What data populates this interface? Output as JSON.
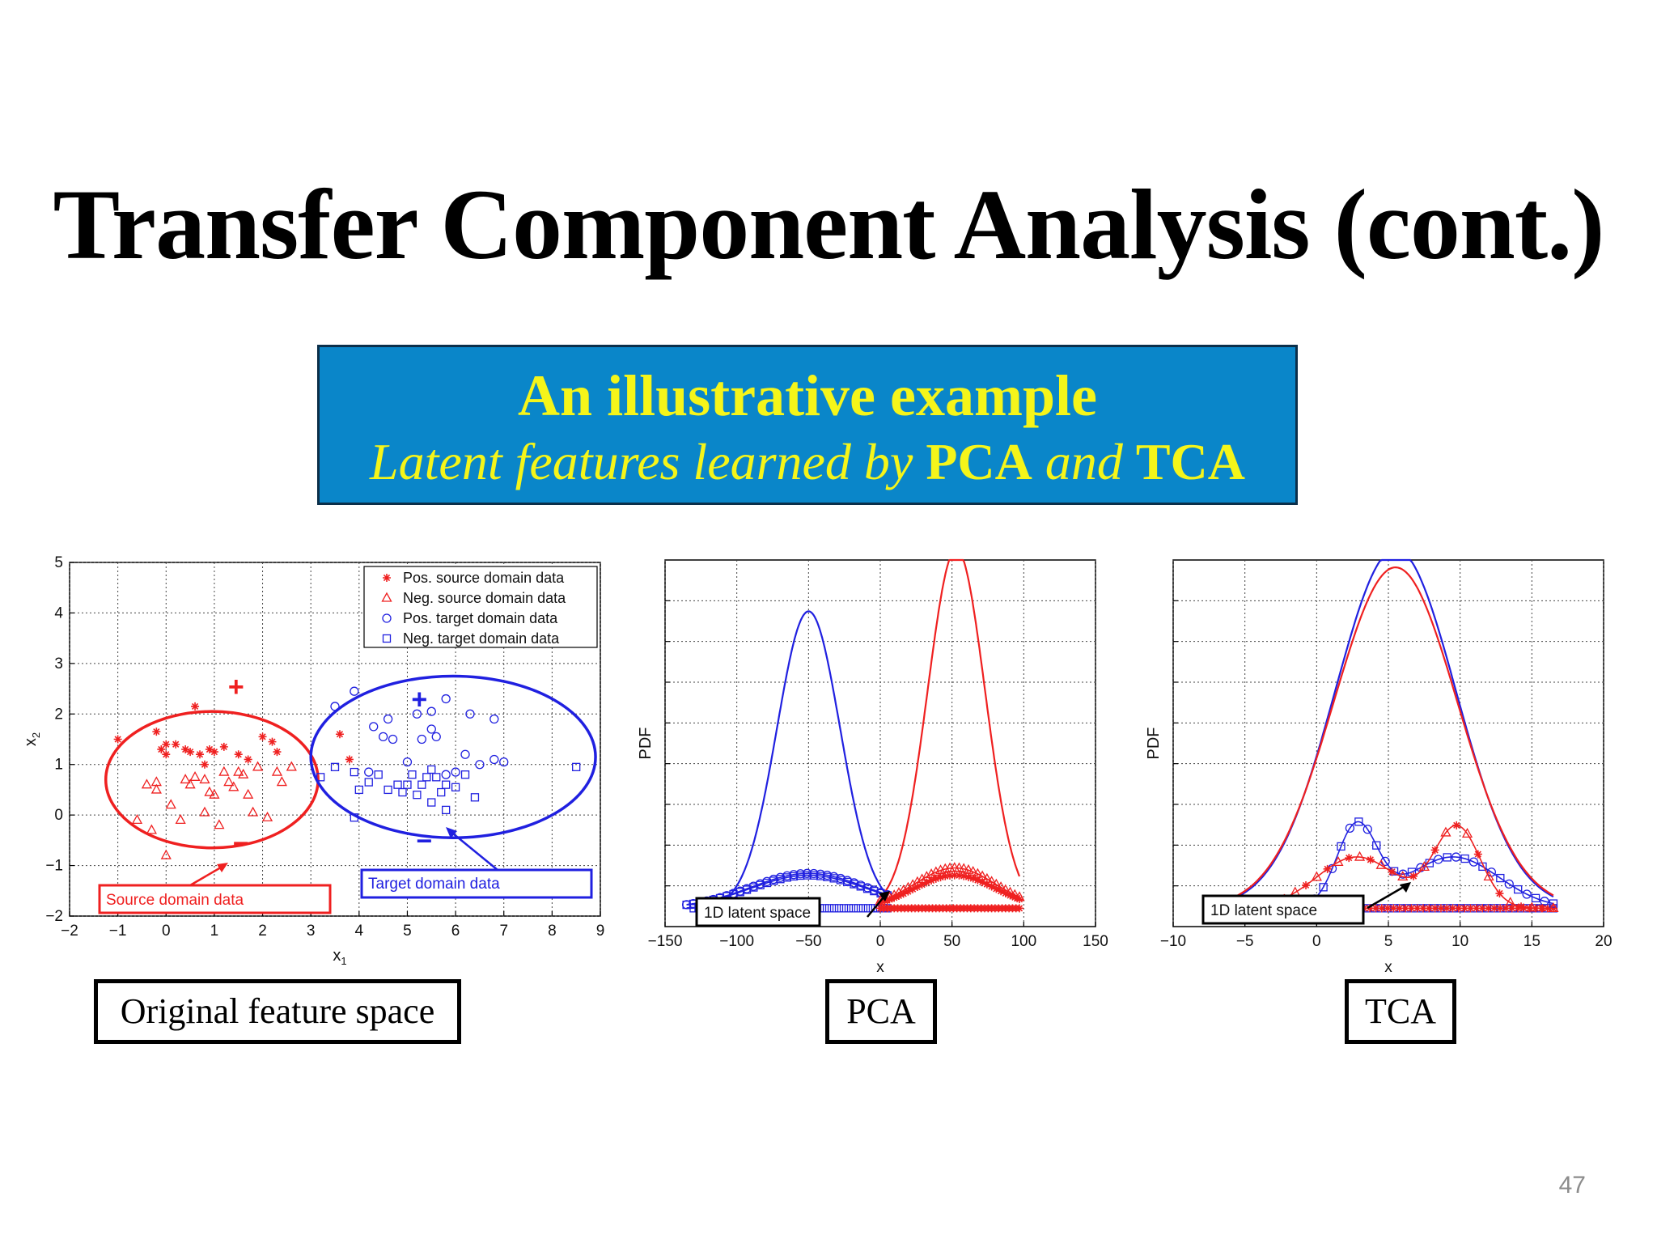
{
  "slide": {
    "title": "Transfer Component Analysis (cont.)",
    "page_number": "47",
    "banner": {
      "heading": "An illustrative example",
      "subtitle": {
        "part1": "Latent features learned by ",
        "pca": "PCA",
        "part2": " and ",
        "tca": "TCA"
      },
      "background_color": "#0a86c9",
      "text_color": "#f5f51a"
    },
    "captions": {
      "original": "Original feature space",
      "pca": "PCA",
      "tca": "TCA"
    }
  },
  "colors": {
    "source": "#ef2020",
    "target": "#2020e0"
  },
  "chart_data": [
    {
      "type": "scatter",
      "title": "",
      "xlabel": "x",
      "xlabel_sub": "1",
      "ylabel": "x",
      "ylabel_sub": "2",
      "xlim": [
        -2,
        9
      ],
      "ylim": [
        -2,
        5
      ],
      "xticks": [
        -2,
        -1,
        0,
        1,
        2,
        3,
        4,
        5,
        6,
        7,
        8,
        9
      ],
      "yticks": [
        -2,
        -1,
        0,
        1,
        2,
        3,
        4,
        5
      ],
      "xtick_labels": [
        "−2",
        "−1",
        "0",
        "1",
        "2",
        "3",
        "4",
        "5",
        "6",
        "7",
        "8",
        "9"
      ],
      "ytick_labels": [
        "−2",
        "−1",
        "0",
        "1",
        "2",
        "3",
        "4",
        "5"
      ],
      "grid": true,
      "legend_position": "top-right",
      "series": [
        {
          "name": "Pos. source domain data",
          "marker": "star",
          "color": "#ef2020",
          "points": [
            [
              -1.0,
              1.5
            ],
            [
              -0.2,
              1.65
            ],
            [
              -0.1,
              1.3
            ],
            [
              0.0,
              1.2
            ],
            [
              0.0,
              1.4
            ],
            [
              0.2,
              1.4
            ],
            [
              0.4,
              1.3
            ],
            [
              0.5,
              1.25
            ],
            [
              0.6,
              2.15
            ],
            [
              0.7,
              1.2
            ],
            [
              0.8,
              1.0
            ],
            [
              0.9,
              1.3
            ],
            [
              1.0,
              1.25
            ],
            [
              1.2,
              1.35
            ],
            [
              1.5,
              1.2
            ],
            [
              1.7,
              1.1
            ],
            [
              2.0,
              1.55
            ],
            [
              2.2,
              1.45
            ],
            [
              2.3,
              1.25
            ],
            [
              3.6,
              1.6
            ],
            [
              3.8,
              1.1
            ]
          ]
        },
        {
          "name": "Neg. source domain data",
          "marker": "triangle",
          "color": "#ef2020",
          "points": [
            [
              -0.4,
              0.6
            ],
            [
              -0.2,
              0.5
            ],
            [
              -0.2,
              0.65
            ],
            [
              -0.6,
              -0.1
            ],
            [
              -0.3,
              -0.3
            ],
            [
              0.0,
              -0.8
            ],
            [
              0.1,
              0.2
            ],
            [
              0.3,
              -0.1
            ],
            [
              0.4,
              0.7
            ],
            [
              0.5,
              0.6
            ],
            [
              0.6,
              0.75
            ],
            [
              0.8,
              0.7
            ],
            [
              0.9,
              0.45
            ],
            [
              1.0,
              0.4
            ],
            [
              1.1,
              -0.2
            ],
            [
              1.2,
              0.85
            ],
            [
              1.3,
              0.65
            ],
            [
              1.4,
              0.55
            ],
            [
              1.5,
              0.85
            ],
            [
              1.6,
              0.8
            ],
            [
              1.7,
              0.4
            ],
            [
              1.8,
              0.05
            ],
            [
              1.9,
              0.95
            ],
            [
              2.1,
              -0.05
            ],
            [
              2.3,
              0.85
            ],
            [
              2.4,
              0.65
            ],
            [
              2.6,
              0.95
            ],
            [
              0.8,
              0.05
            ]
          ]
        },
        {
          "name": "Pos. target domain data",
          "marker": "circle",
          "color": "#2020e0",
          "points": [
            [
              3.5,
              2.15
            ],
            [
              3.9,
              2.45
            ],
            [
              4.3,
              1.75
            ],
            [
              4.5,
              1.55
            ],
            [
              4.6,
              1.9
            ],
            [
              4.7,
              1.5
            ],
            [
              5.0,
              1.05
            ],
            [
              5.2,
              2.0
            ],
            [
              5.3,
              1.5
            ],
            [
              5.5,
              2.05
            ],
            [
              5.5,
              1.7
            ],
            [
              5.6,
              1.55
            ],
            [
              5.8,
              2.3
            ],
            [
              6.0,
              0.85
            ],
            [
              6.2,
              1.2
            ],
            [
              6.3,
              2.0
            ],
            [
              6.5,
              1.0
            ],
            [
              6.8,
              1.9
            ],
            [
              6.8,
              1.1
            ],
            [
              7.0,
              1.05
            ],
            [
              4.2,
              0.85
            ],
            [
              5.8,
              0.8
            ]
          ]
        },
        {
          "name": "Neg. target domain data",
          "marker": "square",
          "color": "#2020e0",
          "points": [
            [
              3.2,
              0.75
            ],
            [
              3.5,
              0.95
            ],
            [
              3.9,
              0.85
            ],
            [
              4.0,
              0.5
            ],
            [
              4.2,
              0.65
            ],
            [
              4.4,
              0.8
            ],
            [
              4.6,
              0.5
            ],
            [
              4.8,
              0.6
            ],
            [
              4.9,
              0.45
            ],
            [
              5.0,
              0.6
            ],
            [
              5.1,
              0.8
            ],
            [
              5.2,
              0.4
            ],
            [
              5.3,
              0.6
            ],
            [
              5.4,
              0.75
            ],
            [
              5.5,
              0.9
            ],
            [
              5.6,
              0.75
            ],
            [
              5.7,
              0.45
            ],
            [
              5.8,
              0.6
            ],
            [
              6.0,
              0.55
            ],
            [
              6.2,
              0.8
            ],
            [
              5.8,
              0.1
            ],
            [
              5.5,
              0.25
            ],
            [
              6.4,
              0.35
            ],
            [
              3.9,
              -0.05
            ],
            [
              8.5,
              0.95
            ]
          ]
        }
      ],
      "annotations": [
        {
          "text": "+",
          "color": "#ef2020",
          "x": 1.45,
          "y": 2.55
        },
        {
          "text": "−",
          "color": "#ef2020",
          "x": 1.55,
          "y": -0.55
        },
        {
          "text": "+",
          "color": "#2020e0",
          "x": 5.25,
          "y": 2.3
        },
        {
          "text": "−",
          "color": "#2020e0",
          "x": 5.35,
          "y": -0.5
        }
      ],
      "ellipses": [
        {
          "color": "#ef2020",
          "cx": 0.95,
          "cy": 0.7,
          "rx": 2.2,
          "ry": 1.35
        },
        {
          "color": "#2020e0",
          "cx": 5.95,
          "cy": 1.15,
          "rx": 2.95,
          "ry": 1.6
        }
      ],
      "callouts": [
        {
          "text": "Source domain data",
          "color": "#ef2020"
        },
        {
          "text": "Target domain data",
          "color": "#2020e0"
        }
      ]
    },
    {
      "type": "line",
      "title": "PCA",
      "xlabel": "x",
      "ylabel": "PDF",
      "xlim": [
        -150,
        150
      ],
      "ylim": [
        0,
        1
      ],
      "xticks": [
        -150,
        -100,
        -50,
        0,
        50,
        100,
        150
      ],
      "xtick_labels": [
        "−150",
        "−100",
        "−50",
        "0",
        "50",
        "100",
        "150"
      ],
      "grid": true,
      "series": [
        {
          "name": "",
          "color": "#2020e0",
          "kind": "gaussian",
          "mu": -50,
          "sigma": 22,
          "amp": 0.81,
          "range": [
            -135,
            5
          ]
        },
        {
          "name": "",
          "color": "#ef2020",
          "kind": "gaussian",
          "mu": 53,
          "sigma": 20,
          "amp": 0.98,
          "range": [
            0,
            97
          ]
        },
        {
          "name": "",
          "color": "#2020e0",
          "kind": "gaussian",
          "mu": -50,
          "sigma": 40,
          "amp": 0.09,
          "marker": "square",
          "range": [
            -135,
            5
          ]
        },
        {
          "name": "",
          "color": "#2020e0",
          "kind": "gaussian",
          "mu": -50,
          "sigma": 40,
          "amp": 0.095,
          "marker": "circle",
          "range": [
            -135,
            5
          ]
        },
        {
          "name": "",
          "color": "#ef2020",
          "kind": "gaussian",
          "mu": 52,
          "sigma": 28,
          "amp": 0.11,
          "marker": "triangle",
          "range": [
            0,
            97
          ]
        },
        {
          "name": "",
          "color": "#ef2020",
          "kind": "gaussian",
          "mu": 52,
          "sigma": 28,
          "amp": 0.09,
          "marker": "star",
          "range": [
            0,
            97
          ]
        }
      ],
      "rugs": [
        {
          "color": "#2020e0",
          "marker": "square",
          "from": -130,
          "to": 5
        },
        {
          "color": "#ef2020",
          "marker": "star",
          "from": 0,
          "to": 97
        }
      ],
      "callouts": [
        {
          "text": "1D latent space",
          "color": "#000000"
        }
      ]
    },
    {
      "type": "line",
      "title": "TCA",
      "xlabel": "x",
      "ylabel": "PDF",
      "xlim": [
        -10,
        20
      ],
      "ylim": [
        0,
        1
      ],
      "xticks": [
        -10,
        -5,
        0,
        5,
        10,
        15,
        20
      ],
      "xtick_labels": [
        "−10",
        "−5",
        "0",
        "5",
        "10",
        "15",
        "20"
      ],
      "grid": true,
      "series": [
        {
          "name": "",
          "color": "#2020e0",
          "kind": "gaussian",
          "mu": 5.5,
          "sigma": 4.2,
          "amp": 0.98,
          "range": [
            -6,
            16.5
          ]
        },
        {
          "name": "",
          "color": "#ef2020",
          "kind": "gaussian",
          "mu": 5.5,
          "sigma": 4.3,
          "amp": 0.93,
          "range": [
            -6,
            16.5
          ]
        },
        {
          "name": "",
          "color": "#2020e0",
          "kind": "bimodal",
          "mu1": 2.8,
          "s1": 1.4,
          "a1": 0.22,
          "mu2": 9.5,
          "s2": 3.2,
          "a2": 0.14,
          "marker": "square-circle",
          "range": [
            -2,
            16.5
          ]
        },
        {
          "name": "",
          "color": "#ef2020",
          "kind": "bimodal",
          "mu1": 2.8,
          "s1": 2.8,
          "a1": 0.14,
          "mu2": 9.8,
          "s2": 1.6,
          "a2": 0.22,
          "marker": "triangle-star",
          "range": [
            -6,
            16.5
          ]
        }
      ],
      "rugs": [
        {
          "color": "#2020e0",
          "marker": "square",
          "from": -2,
          "to": 16.5
        },
        {
          "color": "#ef2020",
          "marker": "star",
          "from": 0,
          "to": 16.5
        }
      ],
      "callouts": [
        {
          "text": "1D latent space",
          "color": "#000000"
        }
      ]
    }
  ]
}
